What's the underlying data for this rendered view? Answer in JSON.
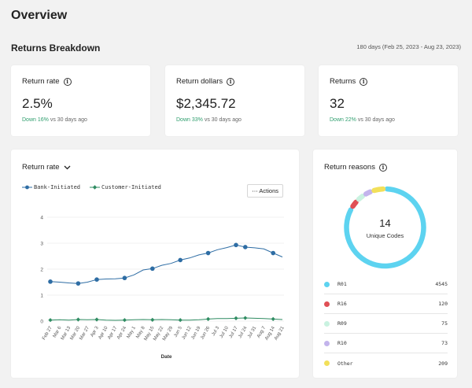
{
  "page": {
    "title": "Overview"
  },
  "breakdown": {
    "title": "Returns Breakdown",
    "range": "180 days (Feb 25, 2023 - Aug 23, 2023)"
  },
  "kpis": [
    {
      "label": "Return rate",
      "value": "2.5%",
      "delta": "Down 16%",
      "suffix": "vs 30 days ago"
    },
    {
      "label": "Return dollars",
      "value": "$2,345.72",
      "delta": "Down 33%",
      "suffix": "vs 30 days ago"
    },
    {
      "label": "Returns",
      "value": "32",
      "delta": "Down 22%",
      "suffix": "vs 30 days ago"
    }
  ],
  "rate_card": {
    "title": "Return rate",
    "actions_label": "Actions"
  },
  "chart_data": {
    "type": "line",
    "xlabel": "Date",
    "ylabel": "",
    "ylim": [
      0,
      4
    ],
    "yticks": [
      0,
      1,
      2,
      3,
      4
    ],
    "grid": true,
    "legend_position": "top-left",
    "categories": [
      "Feb 27",
      "Mar 6",
      "Mar 13",
      "Mar 20",
      "Mar 27",
      "Apr 3",
      "Apr 10",
      "Apr 17",
      "Apr 24",
      "May 1",
      "May 8",
      "May 15",
      "May 22",
      "May 29",
      "Jun 5",
      "Jun 12",
      "Jun 19",
      "Jun 26",
      "Jul 3",
      "Jul 10",
      "Jul 17",
      "Jul 24",
      "Jul 31",
      "Aug 7",
      "Aug 14",
      "Aug 21"
    ],
    "series": [
      {
        "name": "Bank-Initiated",
        "color": "#2e6da4",
        "marker": "circle",
        "values": [
          1.52,
          1.5,
          1.47,
          1.45,
          1.5,
          1.6,
          1.62,
          1.63,
          1.66,
          1.78,
          1.97,
          2.02,
          2.15,
          2.22,
          2.35,
          2.43,
          2.55,
          2.62,
          2.75,
          2.83,
          2.93,
          2.85,
          2.82,
          2.78,
          2.62,
          2.47
        ],
        "marked": [
          0,
          3,
          5,
          8,
          11,
          14,
          17,
          20,
          21,
          24
        ]
      },
      {
        "name": "Customer-Initiated",
        "color": "#2f8c62",
        "marker": "diamond",
        "values": [
          0.04,
          0.05,
          0.04,
          0.06,
          0.05,
          0.06,
          0.04,
          0.03,
          0.04,
          0.05,
          0.06,
          0.05,
          0.06,
          0.05,
          0.04,
          0.04,
          0.05,
          0.08,
          0.1,
          0.1,
          0.11,
          0.12,
          0.11,
          0.1,
          0.08,
          0.06
        ],
        "marked": [
          0,
          3,
          5,
          8,
          11,
          14,
          17,
          20,
          21,
          24
        ]
      }
    ]
  },
  "reasons_card": {
    "title": "Return reasons",
    "center_value": "14",
    "center_label": "Unique Codes",
    "items": [
      {
        "code": "R01",
        "count": "4545",
        "color": "#5dd3f0"
      },
      {
        "code": "R16",
        "count": "120",
        "color": "#e04f55"
      },
      {
        "code": "R09",
        "count": "75",
        "color": "#c9f2e0"
      },
      {
        "code": "R10",
        "count": "73",
        "color": "#c3b4ec"
      },
      {
        "code": "Other",
        "count": "209",
        "color": "#f2e05a"
      }
    ]
  },
  "donut_data": {
    "values": [
      4545,
      120,
      75,
      73,
      209
    ]
  }
}
